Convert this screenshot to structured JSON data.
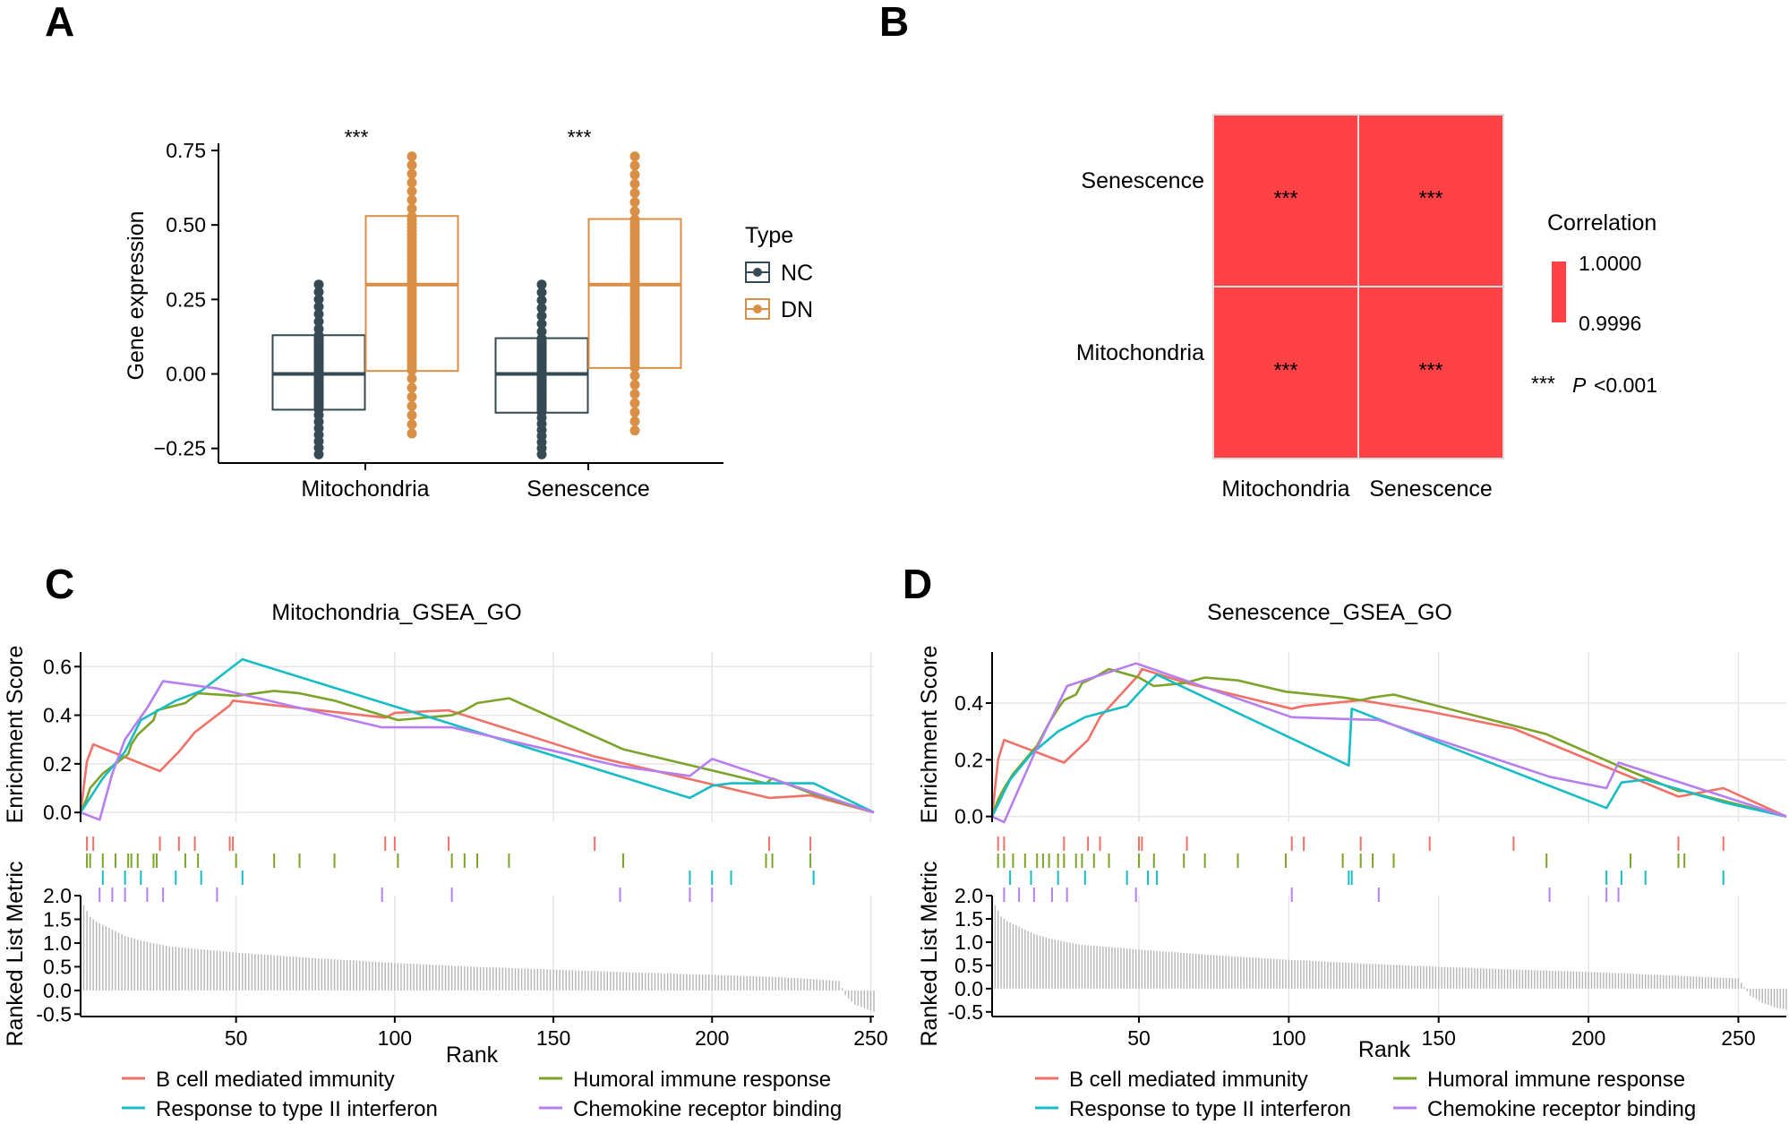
{
  "panels": {
    "A": "A",
    "B": "B",
    "C": "C",
    "D": "D"
  },
  "chart_data": [
    {
      "panel": "A",
      "type": "box",
      "ylabel": "Gene expression",
      "xlabel": "",
      "categories": [
        "Mitochondria",
        "Senescence"
      ],
      "y_ticks": [
        -0.25,
        0.0,
        0.25,
        0.5,
        0.75
      ],
      "y_tick_labels": [
        "−0.25",
        "0.00",
        "0.25",
        "0.50",
        "0.75"
      ],
      "ylim": [
        -0.29,
        0.78
      ],
      "legend_title": "Type",
      "groups": [
        {
          "name": "NC",
          "color": "#354A52"
        },
        {
          "name": "DN",
          "color": "#D98F45"
        }
      ],
      "significance": [
        "***",
        "***"
      ],
      "significance_color": "#C8102E",
      "boxes": [
        {
          "category": "Mitochondria",
          "group": "NC",
          "q1": -0.12,
          "median": 0.0,
          "q3": 0.13,
          "min": -0.27,
          "max": 0.3
        },
        {
          "category": "Mitochondria",
          "group": "DN",
          "q1": 0.01,
          "median": 0.3,
          "q3": 0.53,
          "min": -0.2,
          "max": 0.73
        },
        {
          "category": "Senescence",
          "group": "NC",
          "q1": -0.13,
          "median": 0.0,
          "q3": 0.12,
          "min": -0.27,
          "max": 0.3
        },
        {
          "category": "Senescence",
          "group": "DN",
          "q1": 0.02,
          "median": 0.3,
          "q3": 0.52,
          "min": -0.19,
          "max": 0.73
        }
      ]
    },
    {
      "panel": "B",
      "type": "heatmap",
      "rows": [
        "Senescence",
        "Mitochondria"
      ],
      "cols": [
        "Mitochondria",
        "Senescence"
      ],
      "values": [
        [
          1.0,
          0.9996
        ],
        [
          0.9996,
          1.0
        ]
      ],
      "labels": [
        [
          "***",
          "***"
        ],
        [
          "***",
          "***"
        ]
      ],
      "cell_color": "#FF4245",
      "legend_title": "Correlation",
      "legend_max": "1.0000",
      "legend_min": "0.9996",
      "footnote_stars": "***",
      "footnote_p": "P",
      "footnote_text": "<0.001"
    },
    {
      "panel": "C",
      "type": "line",
      "title": "Mitochondria_GSEA_GO",
      "xlabel": "Rank",
      "ylabel_top": "Enrichment Score",
      "ylabel_bottom": "Ranked List Metric",
      "x_ticks": [
        50,
        100,
        150,
        200,
        250
      ],
      "xlim": [
        1,
        251
      ],
      "es_ticks": [
        0.0,
        0.2,
        0.4,
        0.6
      ],
      "es_tick_labels": [
        "0.0",
        "0.2",
        "0.4",
        "0.6"
      ],
      "es_ylim": [
        -0.04,
        0.66
      ],
      "metric_ticks": [
        -0.5,
        0.0,
        0.5,
        1.0,
        1.5,
        2.0
      ],
      "metric_tick_labels": [
        "-0.5",
        "0.0",
        "0.5",
        "1.0",
        "1.5",
        "2.0"
      ],
      "metric_ylim": [
        -0.55,
        2.0
      ],
      "series": [
        {
          "name": "B cell mediated immunity",
          "color": "#F07167",
          "hits": [
            3,
            5,
            26,
            32,
            37,
            48,
            49,
            97,
            100,
            117,
            163,
            218,
            231
          ],
          "x": [
            1,
            3,
            5,
            26,
            32,
            37,
            48,
            49,
            97,
            100,
            117,
            163,
            218,
            231,
            251
          ],
          "y": [
            0.0,
            0.21,
            0.28,
            0.17,
            0.25,
            0.33,
            0.44,
            0.46,
            0.39,
            0.41,
            0.42,
            0.23,
            0.06,
            0.07,
            0.0
          ]
        },
        {
          "name": "Humoral immune response",
          "color": "#7BA428",
          "hits": [
            3,
            4,
            8,
            12,
            16,
            17,
            19,
            24,
            25,
            34,
            38,
            50,
            62,
            70,
            81,
            101,
            118,
            122,
            126,
            136,
            172,
            217,
            219,
            231
          ],
          "x": [
            1,
            3,
            4,
            8,
            12,
            16,
            17,
            19,
            24,
            25,
            34,
            38,
            50,
            62,
            70,
            81,
            101,
            118,
            122,
            126,
            136,
            172,
            217,
            219,
            231,
            251
          ],
          "y": [
            0.0,
            0.06,
            0.1,
            0.16,
            0.2,
            0.24,
            0.28,
            0.32,
            0.38,
            0.42,
            0.45,
            0.49,
            0.48,
            0.5,
            0.49,
            0.46,
            0.38,
            0.4,
            0.42,
            0.45,
            0.47,
            0.26,
            0.12,
            0.14,
            0.08,
            0.0
          ]
        },
        {
          "name": "Response to type II interferon",
          "color": "#17BDC4",
          "hits": [
            8,
            15,
            20,
            31,
            39,
            52,
            193,
            200,
            206,
            232
          ],
          "x": [
            1,
            8,
            15,
            20,
            31,
            39,
            52,
            193,
            200,
            206,
            232,
            251
          ],
          "y": [
            0.0,
            0.14,
            0.25,
            0.38,
            0.46,
            0.5,
            0.63,
            0.06,
            0.11,
            0.12,
            0.12,
            0.0
          ]
        },
        {
          "name": "Chemokine receptor binding",
          "color": "#B77EF0",
          "hits": [
            7,
            11,
            15,
            22,
            27,
            44,
            96,
            118,
            171,
            193,
            200
          ],
          "x": [
            1,
            7,
            11,
            15,
            22,
            27,
            44,
            96,
            118,
            171,
            193,
            200,
            251
          ],
          "y": [
            0.0,
            -0.03,
            0.16,
            0.3,
            0.43,
            0.54,
            0.51,
            0.35,
            0.35,
            0.19,
            0.15,
            0.22,
            0.0
          ]
        }
      ],
      "metric_profile": {
        "rank": [
          1,
          2,
          4,
          6,
          10,
          15,
          20,
          30,
          50,
          75,
          100,
          125,
          150,
          175,
          200,
          225,
          240,
          242,
          245,
          251
        ],
        "value": [
          1.95,
          1.8,
          1.55,
          1.45,
          1.32,
          1.15,
          1.05,
          0.92,
          0.8,
          0.68,
          0.58,
          0.5,
          0.44,
          0.38,
          0.33,
          0.27,
          0.2,
          -0.1,
          -0.3,
          -0.45
        ]
      }
    },
    {
      "panel": "D",
      "type": "line",
      "title": "Senescence_GSEA_GO",
      "xlabel": "Rank",
      "ylabel_top": "Enrichment Score",
      "ylabel_bottom": "Ranked List Metric",
      "x_ticks": [
        50,
        100,
        150,
        200,
        250
      ],
      "xlim": [
        1,
        266
      ],
      "es_ticks": [
        0.0,
        0.2,
        0.4
      ],
      "es_tick_labels": [
        "0.0",
        "0.2",
        "0.4"
      ],
      "es_ylim": [
        -0.02,
        0.58
      ],
      "metric_ticks": [
        -0.5,
        0.0,
        0.5,
        1.0,
        1.5,
        2.0
      ],
      "metric_tick_labels": [
        "-0.5",
        "0.0",
        "0.5",
        "1.0",
        "1.5",
        "2.0"
      ],
      "metric_ylim": [
        -0.6,
        2.0
      ],
      "series": [
        {
          "name": "B cell mediated immunity",
          "color": "#F07167",
          "hits": [
            3,
            5,
            25,
            33,
            37,
            50,
            51,
            66,
            101,
            105,
            124,
            147,
            175,
            230,
            245
          ],
          "x": [
            1,
            3,
            5,
            25,
            33,
            37,
            50,
            51,
            66,
            101,
            105,
            124,
            147,
            175,
            230,
            245,
            266
          ],
          "y": [
            0.0,
            0.2,
            0.27,
            0.19,
            0.27,
            0.35,
            0.5,
            0.52,
            0.47,
            0.38,
            0.39,
            0.41,
            0.37,
            0.31,
            0.07,
            0.1,
            0.0
          ]
        },
        {
          "name": "Humoral immune response",
          "color": "#7BA428",
          "hits": [
            3,
            5,
            8,
            12,
            16,
            18,
            20,
            23,
            25,
            29,
            31,
            35,
            40,
            50,
            55,
            65,
            72,
            83,
            99,
            118,
            124,
            128,
            135,
            186,
            214,
            230,
            232
          ],
          "x": [
            1,
            3,
            5,
            8,
            12,
            16,
            18,
            20,
            23,
            25,
            29,
            31,
            35,
            40,
            50,
            55,
            65,
            72,
            83,
            99,
            118,
            124,
            128,
            135,
            186,
            214,
            230,
            232,
            266
          ],
          "y": [
            0.0,
            0.06,
            0.1,
            0.15,
            0.2,
            0.25,
            0.29,
            0.33,
            0.38,
            0.41,
            0.43,
            0.47,
            0.49,
            0.52,
            0.49,
            0.46,
            0.47,
            0.49,
            0.48,
            0.44,
            0.42,
            0.41,
            0.42,
            0.43,
            0.29,
            0.16,
            0.09,
            0.09,
            0.0
          ]
        },
        {
          "name": "Response to type II interferon",
          "color": "#17BDC4",
          "hits": [
            7,
            14,
            23,
            32,
            46,
            53,
            56,
            120,
            121,
            206,
            211,
            219,
            245
          ],
          "x": [
            1,
            7,
            14,
            23,
            32,
            46,
            53,
            56,
            120,
            121,
            206,
            211,
            219,
            245,
            266
          ],
          "y": [
            0.0,
            0.13,
            0.22,
            0.3,
            0.35,
            0.39,
            0.47,
            0.5,
            0.18,
            0.38,
            0.03,
            0.12,
            0.13,
            0.05,
            0.0
          ]
        },
        {
          "name": "Chemokine receptor binding",
          "color": "#B77EF0",
          "hits": [
            5,
            10,
            15,
            21,
            26,
            49,
            101,
            130,
            187,
            206,
            210
          ],
          "x": [
            1,
            5,
            10,
            15,
            21,
            26,
            49,
            101,
            130,
            187,
            206,
            210,
            266
          ],
          "y": [
            0.0,
            -0.02,
            0.1,
            0.22,
            0.35,
            0.46,
            0.54,
            0.35,
            0.34,
            0.14,
            0.1,
            0.19,
            0.0
          ]
        }
      ],
      "metric_profile": {
        "rank": [
          1,
          2,
          4,
          6,
          10,
          15,
          20,
          30,
          50,
          75,
          100,
          125,
          150,
          175,
          200,
          225,
          250,
          254,
          258,
          262,
          266
        ],
        "value": [
          1.95,
          1.8,
          1.55,
          1.45,
          1.33,
          1.18,
          1.08,
          0.95,
          0.84,
          0.72,
          0.62,
          0.54,
          0.47,
          0.41,
          0.36,
          0.29,
          0.22,
          -0.15,
          -0.3,
          -0.4,
          -0.45
        ]
      }
    }
  ]
}
